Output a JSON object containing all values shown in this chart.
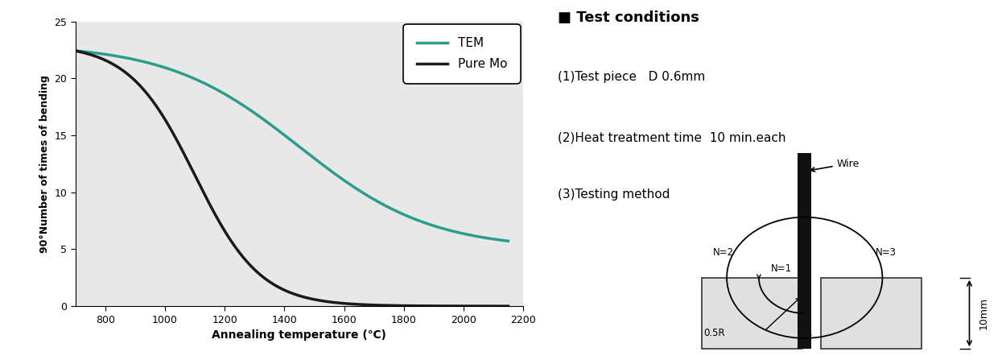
{
  "xlabel": "Annealing temperature (℃)",
  "ylabel": "90°Number of times of bending",
  "xlim": [
    700,
    2200
  ],
  "ylim": [
    0,
    25
  ],
  "xticks": [
    800,
    1000,
    1200,
    1400,
    1600,
    1800,
    2000,
    2200
  ],
  "yticks": [
    0,
    5,
    10,
    15,
    20,
    25
  ],
  "bg_color": "#e8e8e8",
  "tem_color": "#2a9d8f",
  "puremo_color": "#1a1a1a",
  "legend_labels": [
    "TEM",
    "Pure Mo"
  ],
  "test_conditions_title": "■ Test conditions",
  "tc1": "(1)Test piece   D 0.6mm",
  "tc2": "(2)Heat treatment time  10 min.each",
  "tc3": "(3)Testing method"
}
